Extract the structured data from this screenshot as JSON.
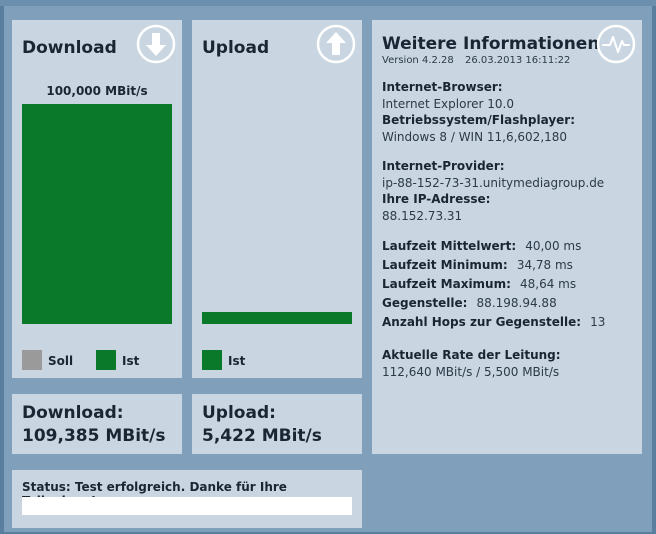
{
  "download": {
    "title": "Download",
    "bar_label": "100,000 MBit/s",
    "legend_soll": "Soll",
    "legend_ist": "Ist",
    "icon": "arrow-down-circle-icon",
    "result_label": "Download:",
    "result_value": "109,385 MBit/s"
  },
  "upload": {
    "title": "Upload",
    "legend_ist": "Ist",
    "icon": "arrow-up-circle-icon",
    "result_label": "Upload:",
    "result_value": "5,422 MBit/s"
  },
  "info": {
    "title": "Weitere Informationen",
    "version": "Version 4.2.28",
    "date": "26.03.2013 16:11:22",
    "icon": "pulse-circle-icon",
    "browser_label": "Internet-Browser:",
    "browser_value": "Internet Explorer 10.0",
    "os_label": "Betriebssystem/Flashplayer:",
    "os_value": "Windows 8 / WIN 11,6,602,180",
    "provider_label": "Internet-Provider:",
    "provider_value": "ip-88-152-73-31.unitymediagroup.de",
    "ip_label": "Ihre IP-Adresse:",
    "ip_value": "88.152.73.31",
    "latency_avg_label": "Laufzeit Mittelwert:",
    "latency_avg_value": "40,00 ms",
    "latency_min_label": "Laufzeit Minimum:",
    "latency_min_value": "34,78 ms",
    "latency_max_label": "Laufzeit Maximum:",
    "latency_max_value": "48,64 ms",
    "remote_label": "Gegenstelle:",
    "remote_value": "88.198.94.88",
    "hops_label": "Anzahl Hops zur Gegenstelle:",
    "hops_value": "13",
    "rate_label": "Aktuelle Rate der Leitung:",
    "rate_value": "112,640 MBit/s / 5,500 MBit/s"
  },
  "status": {
    "text": "Status: Test erfolgreich. Danke für Ihre Teilnahme!",
    "progress": 0
  },
  "colors": {
    "bar_green": "#0a7a2a",
    "soll_gray": "#9a9a9a",
    "panel": "#c9d6e1",
    "background": "#7f9fbb"
  }
}
